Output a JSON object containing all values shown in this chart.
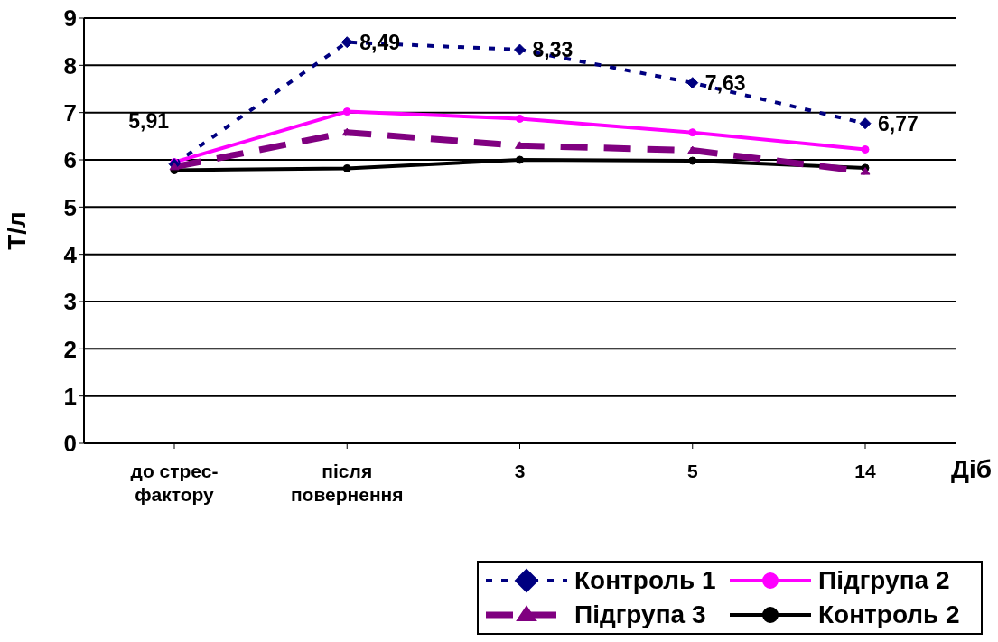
{
  "chart_data": {
    "type": "line",
    "categories": [
      "до стрес-фактору",
      "після повернення",
      "3",
      "5",
      "14"
    ],
    "xlabel": "Діб",
    "ylabel": "Т/л",
    "ylim": [
      0,
      9
    ],
    "yticks": [
      0,
      1,
      2,
      3,
      4,
      5,
      6,
      7,
      8,
      9
    ],
    "grid": "y",
    "legend": "bottom right",
    "series": [
      {
        "name": "Контроль 1",
        "color": "#000080",
        "marker": "diamond",
        "line_style": "dotted",
        "values": [
          5.91,
          8.49,
          8.33,
          7.63,
          6.77
        ],
        "value_labels": [
          "5,91",
          "8,49",
          "8,33",
          "7,63",
          "6,77"
        ]
      },
      {
        "name": "Підгрупа 2",
        "color": "#ff00ff",
        "marker": "circle",
        "line_style": "solid",
        "values": [
          5.95,
          7.02,
          6.87,
          6.58,
          6.22
        ]
      },
      {
        "name": "Підгрупа 3",
        "color": "#800080",
        "marker": "triangle",
        "line_style": "dashed",
        "values": [
          5.85,
          6.58,
          6.3,
          6.2,
          5.75
        ]
      },
      {
        "name": "Контроль 2",
        "color": "#000000",
        "marker": "circle",
        "line_style": "solid",
        "values": [
          5.78,
          5.82,
          6.0,
          5.98,
          5.83
        ]
      }
    ]
  }
}
